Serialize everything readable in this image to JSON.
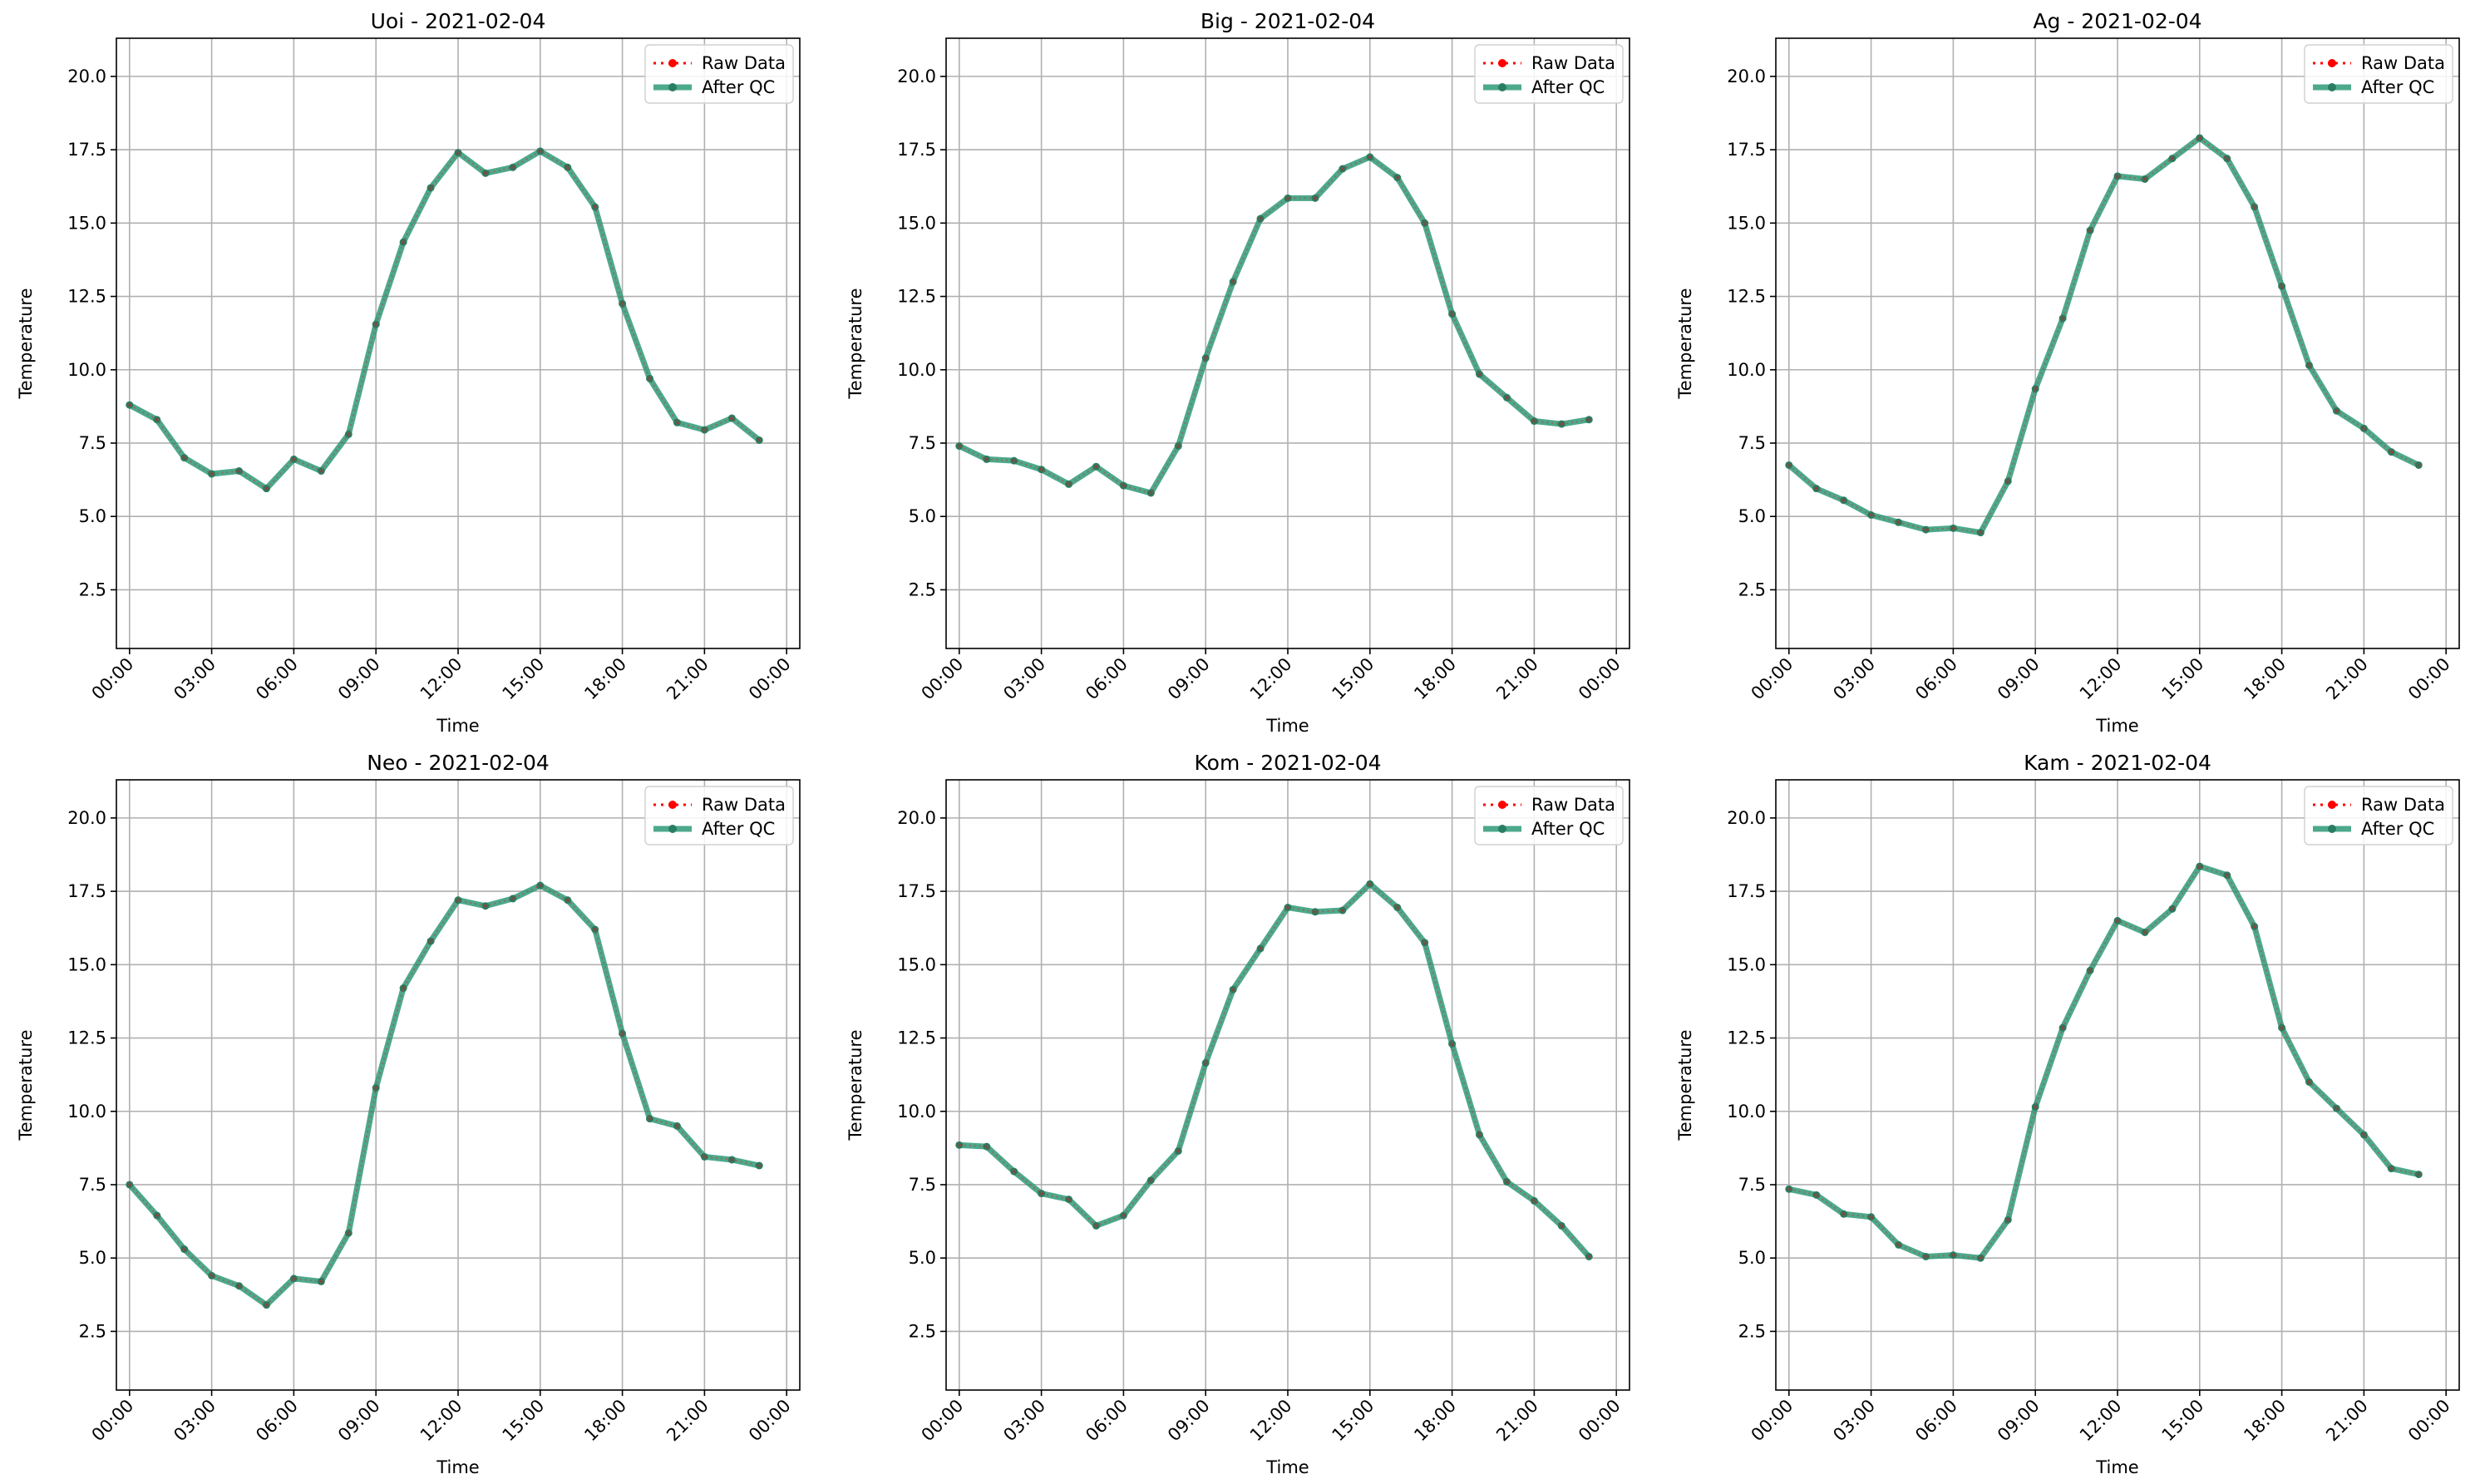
{
  "figure": {
    "x_tick_labels": [
      "00:00",
      "03:00",
      "06:00",
      "09:00",
      "12:00",
      "15:00",
      "18:00",
      "21:00",
      "00:00"
    ],
    "y_tick_labels": [
      "2.5",
      "5.0",
      "7.5",
      "10.0",
      "12.5",
      "15.0",
      "17.5",
      "20.0"
    ],
    "xlabel": "Time",
    "ylabel": "Temperature",
    "legend": [
      "Raw Data",
      "After QC"
    ]
  },
  "colors": {
    "raw": "#ff0000",
    "qc": "#2e9a78",
    "qc_marker": "#2a7d63",
    "grid": "#b0b0b0"
  },
  "chart_data": [
    {
      "type": "line",
      "title": "Uoi - 2021-02-04",
      "xlabel": "Time",
      "ylabel": "Temperature",
      "x": [
        "00:00",
        "01:00",
        "02:00",
        "03:00",
        "04:00",
        "05:00",
        "06:00",
        "07:00",
        "08:00",
        "09:00",
        "10:00",
        "11:00",
        "12:00",
        "13:00",
        "14:00",
        "15:00",
        "16:00",
        "17:00",
        "18:00",
        "19:00",
        "20:00",
        "21:00",
        "22:00",
        "23:00"
      ],
      "xlim": [
        "2021-02-04 00:00",
        "2021-02-05 00:00"
      ],
      "ylim": [
        0.5,
        21.3
      ],
      "grid": true,
      "legend_position": "top-right",
      "series": [
        {
          "name": "Raw Data",
          "values": [
            8.8,
            8.3,
            7.0,
            6.45,
            6.55,
            5.95,
            6.95,
            6.55,
            7.8,
            11.55,
            14.35,
            16.2,
            17.4,
            16.7,
            16.9,
            17.45,
            16.9,
            15.55,
            12.25,
            9.7,
            8.2,
            7.95,
            8.35,
            7.6
          ]
        },
        {
          "name": "After QC",
          "values": [
            8.8,
            8.3,
            7.0,
            6.45,
            6.55,
            5.95,
            6.95,
            6.55,
            7.8,
            11.55,
            14.35,
            16.2,
            17.4,
            16.7,
            16.9,
            17.45,
            16.9,
            15.55,
            12.25,
            9.7,
            8.2,
            7.95,
            8.35,
            7.6
          ]
        }
      ]
    },
    {
      "type": "line",
      "title": "Big - 2021-02-04",
      "xlabel": "Time",
      "ylabel": "Temperature",
      "x": [
        "00:00",
        "01:00",
        "02:00",
        "03:00",
        "04:00",
        "05:00",
        "06:00",
        "07:00",
        "08:00",
        "09:00",
        "10:00",
        "11:00",
        "12:00",
        "13:00",
        "14:00",
        "15:00",
        "16:00",
        "17:00",
        "18:00",
        "19:00",
        "20:00",
        "21:00",
        "22:00",
        "23:00"
      ],
      "xlim": [
        "2021-02-04 00:00",
        "2021-02-05 00:00"
      ],
      "ylim": [
        0.5,
        21.3
      ],
      "grid": true,
      "legend_position": "top-right",
      "series": [
        {
          "name": "Raw Data",
          "values": [
            7.4,
            6.95,
            6.9,
            6.6,
            6.1,
            6.7,
            6.05,
            5.8,
            7.4,
            10.4,
            13.0,
            15.15,
            15.85,
            15.85,
            16.85,
            17.25,
            16.55,
            15.0,
            11.9,
            9.85,
            9.05,
            8.25,
            8.15,
            8.3
          ]
        },
        {
          "name": "After QC",
          "values": [
            7.4,
            6.95,
            6.9,
            6.6,
            6.1,
            6.7,
            6.05,
            5.8,
            7.4,
            10.4,
            13.0,
            15.15,
            15.85,
            15.85,
            16.85,
            17.25,
            16.55,
            15.0,
            11.9,
            9.85,
            9.05,
            8.25,
            8.15,
            8.3
          ]
        }
      ]
    },
    {
      "type": "line",
      "title": "Ag - 2021-02-04",
      "xlabel": "Time",
      "ylabel": "Temperature",
      "x": [
        "00:00",
        "01:00",
        "02:00",
        "03:00",
        "04:00",
        "05:00",
        "06:00",
        "07:00",
        "08:00",
        "09:00",
        "10:00",
        "11:00",
        "12:00",
        "13:00",
        "14:00",
        "15:00",
        "16:00",
        "17:00",
        "18:00",
        "19:00",
        "20:00",
        "21:00",
        "22:00",
        "23:00"
      ],
      "xlim": [
        "2021-02-04 00:00",
        "2021-02-05 00:00"
      ],
      "ylim": [
        0.5,
        21.3
      ],
      "grid": true,
      "legend_position": "top-right",
      "series": [
        {
          "name": "Raw Data",
          "values": [
            6.75,
            5.95,
            5.55,
            5.05,
            4.8,
            4.55,
            4.6,
            4.45,
            6.2,
            9.35,
            11.75,
            14.75,
            16.6,
            16.5,
            17.2,
            17.9,
            17.2,
            15.55,
            12.85,
            10.15,
            8.6,
            8.0,
            7.2,
            6.75
          ]
        },
        {
          "name": "After QC",
          "values": [
            6.75,
            5.95,
            5.55,
            5.05,
            4.8,
            4.55,
            4.6,
            4.45,
            6.2,
            9.35,
            11.75,
            14.75,
            16.6,
            16.5,
            17.2,
            17.9,
            17.2,
            15.55,
            12.85,
            10.15,
            8.6,
            8.0,
            7.2,
            6.75
          ]
        }
      ]
    },
    {
      "type": "line",
      "title": "Neo - 2021-02-04",
      "xlabel": "Time",
      "ylabel": "Temperature",
      "x": [
        "00:00",
        "01:00",
        "02:00",
        "03:00",
        "04:00",
        "05:00",
        "06:00",
        "07:00",
        "08:00",
        "09:00",
        "10:00",
        "11:00",
        "12:00",
        "13:00",
        "14:00",
        "15:00",
        "16:00",
        "17:00",
        "18:00",
        "19:00",
        "20:00",
        "21:00",
        "22:00",
        "23:00"
      ],
      "xlim": [
        "2021-02-04 00:00",
        "2021-02-05 00:00"
      ],
      "ylim": [
        0.5,
        21.3
      ],
      "grid": true,
      "legend_position": "top-right",
      "series": [
        {
          "name": "Raw Data",
          "values": [
            7.5,
            6.45,
            5.3,
            4.4,
            4.05,
            3.4,
            4.3,
            4.2,
            5.85,
            10.8,
            14.2,
            15.8,
            17.2,
            17.0,
            17.25,
            17.7,
            17.2,
            16.2,
            12.65,
            9.75,
            9.5,
            8.45,
            8.35,
            8.15
          ]
        },
        {
          "name": "After QC",
          "values": [
            7.5,
            6.45,
            5.3,
            4.4,
            4.05,
            3.4,
            4.3,
            4.2,
            5.85,
            10.8,
            14.2,
            15.8,
            17.2,
            17.0,
            17.25,
            17.7,
            17.2,
            16.2,
            12.65,
            9.75,
            9.5,
            8.45,
            8.35,
            8.15
          ]
        }
      ]
    },
    {
      "type": "line",
      "title": "Kom - 2021-02-04",
      "xlabel": "Time",
      "ylabel": "Temperature",
      "x": [
        "00:00",
        "01:00",
        "02:00",
        "03:00",
        "04:00",
        "05:00",
        "06:00",
        "07:00",
        "08:00",
        "09:00",
        "10:00",
        "11:00",
        "12:00",
        "13:00",
        "14:00",
        "15:00",
        "16:00",
        "17:00",
        "18:00",
        "19:00",
        "20:00",
        "21:00",
        "22:00",
        "23:00"
      ],
      "xlim": [
        "2021-02-04 00:00",
        "2021-02-05 00:00"
      ],
      "ylim": [
        0.5,
        21.3
      ],
      "grid": true,
      "legend_position": "top-right",
      "series": [
        {
          "name": "Raw Data",
          "values": [
            8.85,
            8.8,
            7.95,
            7.2,
            7.0,
            6.1,
            6.45,
            7.65,
            8.65,
            11.65,
            14.15,
            15.55,
            16.95,
            16.8,
            16.85,
            17.75,
            16.95,
            15.75,
            12.3,
            9.2,
            7.6,
            6.95,
            6.1,
            5.05
          ]
        },
        {
          "name": "After QC",
          "values": [
            8.85,
            8.8,
            7.95,
            7.2,
            7.0,
            6.1,
            6.45,
            7.65,
            8.65,
            11.65,
            14.15,
            15.55,
            16.95,
            16.8,
            16.85,
            17.75,
            16.95,
            15.75,
            12.3,
            9.2,
            7.6,
            6.95,
            6.1,
            5.05
          ]
        }
      ]
    },
    {
      "type": "line",
      "title": "Kam - 2021-02-04",
      "xlabel": "Time",
      "ylabel": "Temperature",
      "x": [
        "00:00",
        "01:00",
        "02:00",
        "03:00",
        "04:00",
        "05:00",
        "06:00",
        "07:00",
        "08:00",
        "09:00",
        "10:00",
        "11:00",
        "12:00",
        "13:00",
        "14:00",
        "15:00",
        "16:00",
        "17:00",
        "18:00",
        "19:00",
        "20:00",
        "21:00",
        "22:00",
        "23:00"
      ],
      "xlim": [
        "2021-02-04 00:00",
        "2021-02-05 00:00"
      ],
      "ylim": [
        0.5,
        21.3
      ],
      "grid": true,
      "legend_position": "top-right",
      "series": [
        {
          "name": "Raw Data",
          "values": [
            7.35,
            7.15,
            6.5,
            6.4,
            5.45,
            5.05,
            5.1,
            5.0,
            6.3,
            10.15,
            12.85,
            14.8,
            16.5,
            16.1,
            16.9,
            18.35,
            18.05,
            16.3,
            12.85,
            11.0,
            10.1,
            9.2,
            8.05,
            7.85
          ]
        },
        {
          "name": "After QC",
          "values": [
            7.35,
            7.15,
            6.5,
            6.4,
            5.45,
            5.05,
            5.1,
            5.0,
            6.3,
            10.15,
            12.85,
            14.8,
            16.5,
            16.1,
            16.9,
            18.35,
            18.05,
            16.3,
            12.85,
            11.0,
            10.1,
            9.2,
            8.05,
            7.85
          ]
        }
      ]
    }
  ]
}
